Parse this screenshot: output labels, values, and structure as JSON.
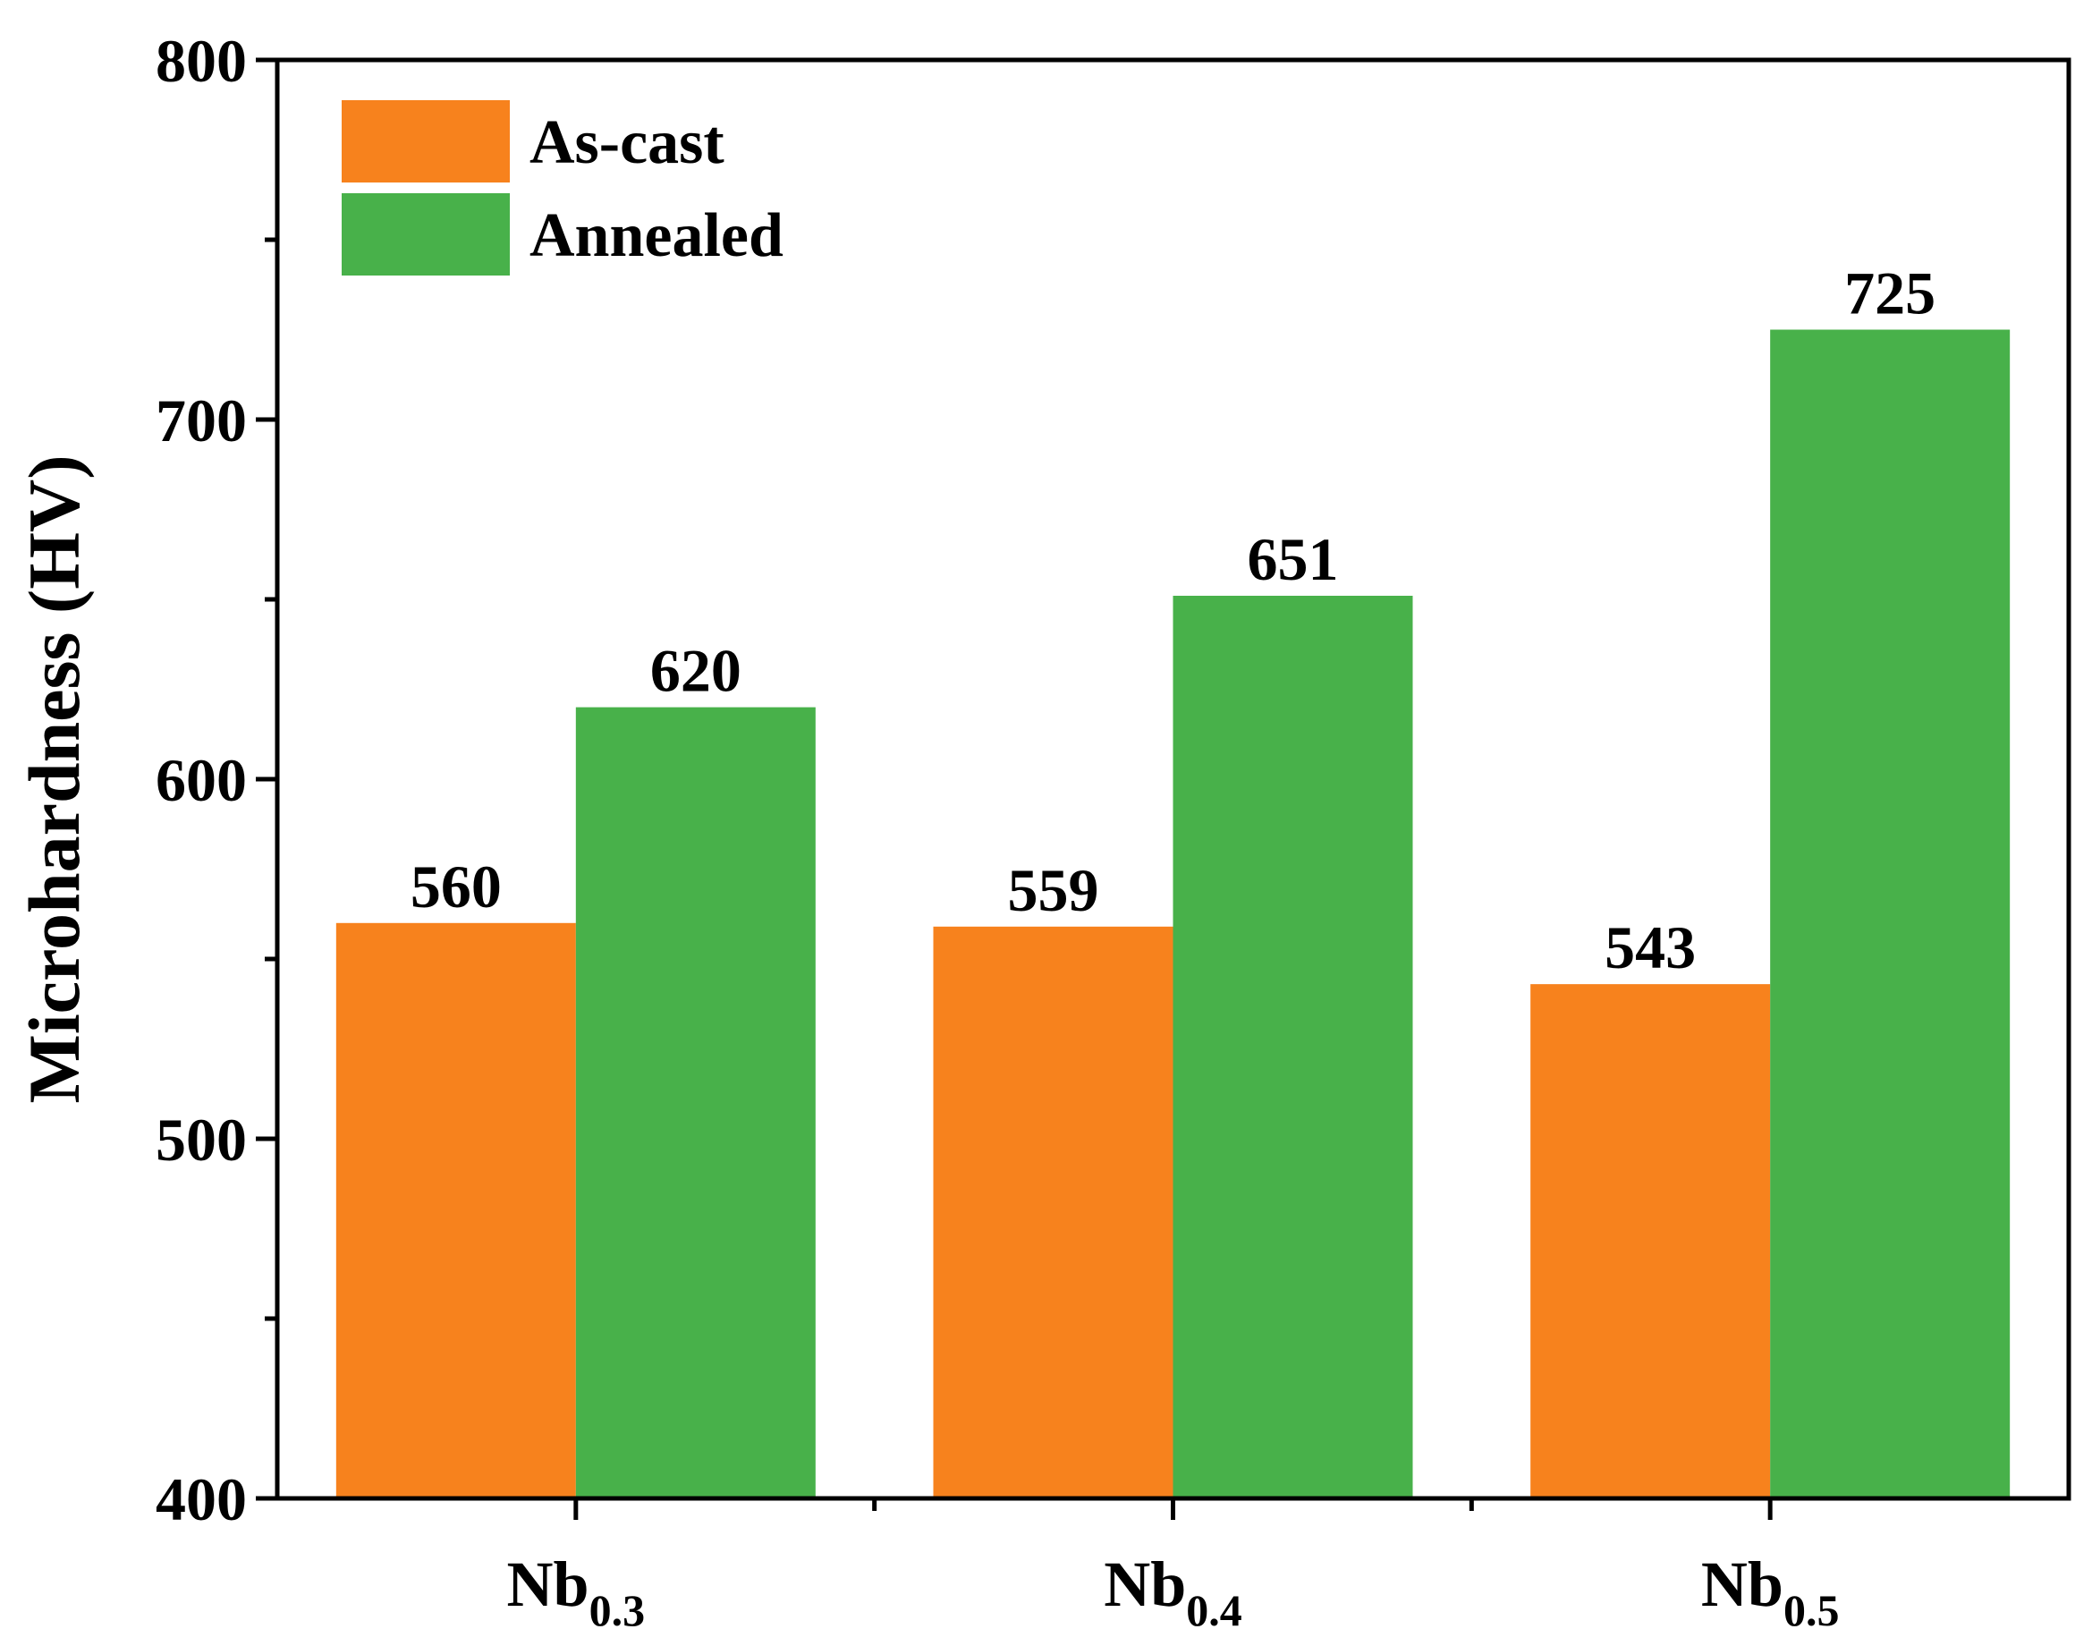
{
  "chart_data": {
    "type": "bar",
    "title": "",
    "xlabel": "",
    "ylabel": "Microhardness (HV)",
    "ylim": [
      400,
      800
    ],
    "yticks": [
      400,
      500,
      600,
      700,
      800
    ],
    "categories": [
      {
        "base": "Nb",
        "sub": "0.3"
      },
      {
        "base": "Nb",
        "sub": "0.4"
      },
      {
        "base": "Nb",
        "sub": "0.5"
      }
    ],
    "series": [
      {
        "name": "As-cast",
        "color": "#f7821d",
        "values": [
          560,
          559,
          543
        ]
      },
      {
        "name": "Annealed",
        "color": "#48b14a",
        "values": [
          620,
          651,
          725
        ]
      }
    ],
    "legend_position": "top-left",
    "grid": false,
    "data_labels": true
  }
}
